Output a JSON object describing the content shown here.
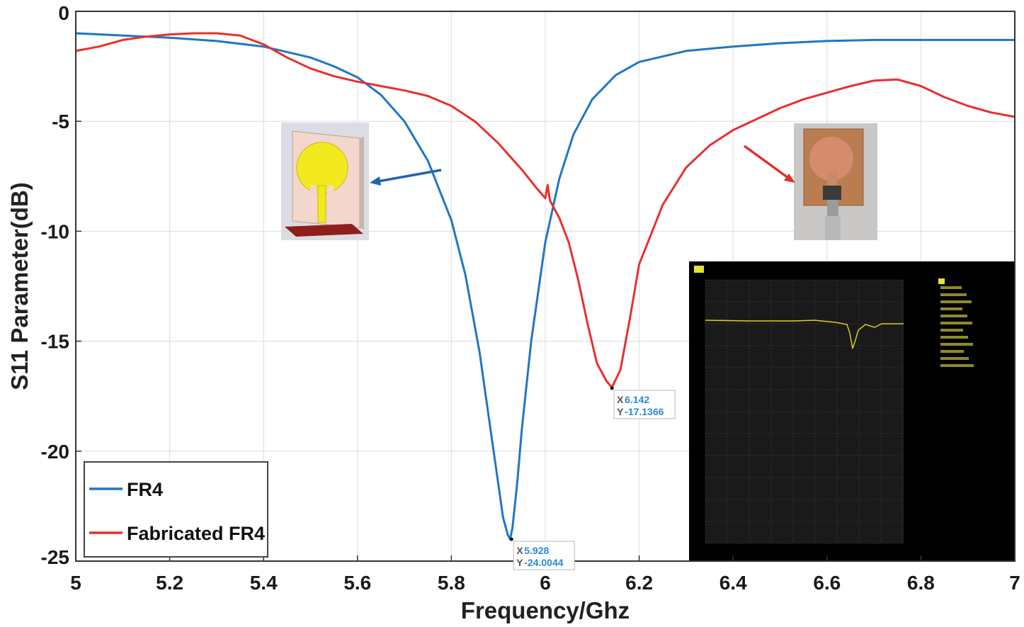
{
  "chart_data": {
    "type": "line",
    "title": "",
    "xlabel": "Frequency/Ghz",
    "ylabel": "S11 Parameter(dB)",
    "xlim": [
      5,
      7
    ],
    "ylim": [
      -25,
      0
    ],
    "xticks": [
      "5",
      "5.2",
      "5.4",
      "5.6",
      "5.8",
      "6",
      "6.2",
      "6.4",
      "6.6",
      "6.8",
      "7"
    ],
    "yticks": [
      "0",
      "-5",
      "-10",
      "-15",
      "-20",
      "-25"
    ],
    "grid": true,
    "legend_position": "bottom-left",
    "series": [
      {
        "name": "FR4",
        "color": "#1f77c4",
        "x": [
          5.0,
          5.1,
          5.2,
          5.3,
          5.4,
          5.5,
          5.55,
          5.6,
          5.65,
          5.7,
          5.75,
          5.8,
          5.83,
          5.86,
          5.88,
          5.9,
          5.91,
          5.92,
          5.925,
          5.93,
          5.94,
          5.95,
          5.97,
          6.0,
          6.03,
          6.06,
          6.1,
          6.15,
          6.2,
          6.3,
          6.4,
          6.5,
          6.6,
          6.7,
          6.8,
          6.9,
          7.0
        ],
        "y": [
          -1.0,
          -1.1,
          -1.2,
          -1.35,
          -1.6,
          -2.1,
          -2.5,
          -3.0,
          -3.8,
          -5.0,
          -6.8,
          -9.5,
          -12.0,
          -15.5,
          -18.5,
          -21.5,
          -23.0,
          -23.8,
          -24.0,
          -23.5,
          -21.5,
          -19.0,
          -15.0,
          -10.5,
          -7.6,
          -5.6,
          -4.0,
          -2.9,
          -2.3,
          -1.8,
          -1.6,
          -1.45,
          -1.35,
          -1.3,
          -1.3,
          -1.3,
          -1.3
        ]
      },
      {
        "name": "Fabricated FR4",
        "color": "#e8302e",
        "x": [
          5.0,
          5.05,
          5.1,
          5.15,
          5.2,
          5.25,
          5.3,
          5.35,
          5.4,
          5.45,
          5.5,
          5.55,
          5.6,
          5.65,
          5.7,
          5.75,
          5.8,
          5.85,
          5.9,
          5.95,
          5.98,
          6.0,
          6.005,
          6.01,
          6.03,
          6.05,
          6.07,
          6.09,
          6.11,
          6.13,
          6.142,
          6.16,
          6.18,
          6.2,
          6.25,
          6.3,
          6.35,
          6.4,
          6.45,
          6.5,
          6.55,
          6.6,
          6.65,
          6.7,
          6.75,
          6.8,
          6.85,
          6.9,
          6.95,
          7.0
        ],
        "y": [
          -1.8,
          -1.6,
          -1.3,
          -1.15,
          -1.05,
          -1.0,
          -1.0,
          -1.1,
          -1.5,
          -2.1,
          -2.6,
          -2.95,
          -3.2,
          -3.4,
          -3.6,
          -3.85,
          -4.3,
          -5.0,
          -6.0,
          -7.2,
          -8.0,
          -8.5,
          -7.9,
          -8.6,
          -9.4,
          -10.5,
          -12.2,
          -14.2,
          -16.0,
          -16.8,
          -17.1,
          -16.3,
          -14.0,
          -11.5,
          -8.8,
          -7.1,
          -6.1,
          -5.4,
          -4.9,
          -4.4,
          -4.0,
          -3.7,
          -3.4,
          -3.15,
          -3.1,
          -3.4,
          -3.9,
          -4.3,
          -4.6,
          -4.8
        ]
      }
    ],
    "annotations": [
      {
        "series": "FR4",
        "x_label": "X",
        "x_value": "5.928",
        "y_label": "Y",
        "y_value": "-24.0044"
      },
      {
        "series": "Fabricated FR4",
        "x_label": "X",
        "x_value": "6.142",
        "y_label": "Y",
        "y_value": "-17.1366"
      }
    ]
  }
}
